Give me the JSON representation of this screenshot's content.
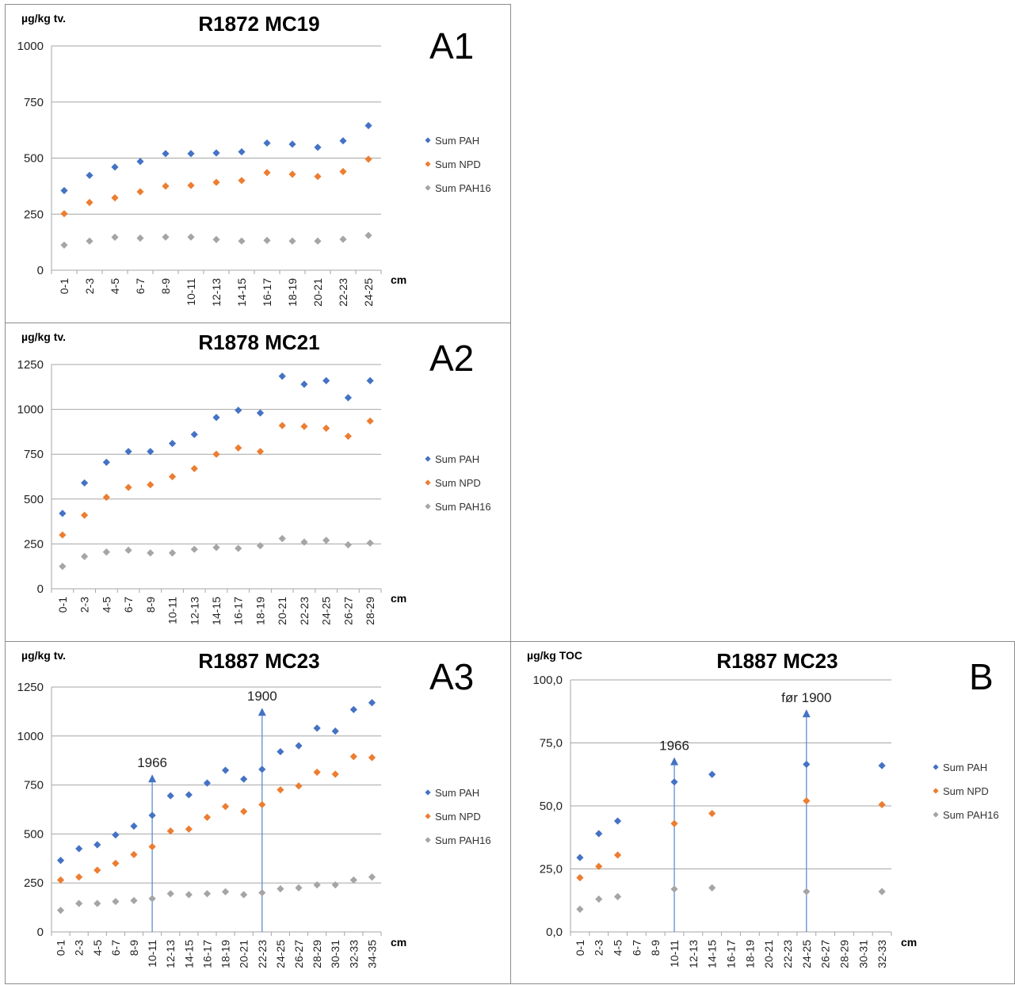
{
  "colors": {
    "Sum PAH": "#4472c4",
    "Sum NPD": "#ed7d31",
    "Sum PAH16": "#a5a5a5",
    "grid": "#a6a6a6",
    "arrow": "#5b8fd3"
  },
  "chart_data": [
    {
      "id": "a1",
      "type": "scatter",
      "title": "R1872 MC19",
      "panel_tag": "A1",
      "ylabel": "µg/kg tv.",
      "xlabel": "cm",
      "ylim": [
        0,
        1000
      ],
      "yticks": [
        "0",
        "250",
        "500",
        "750",
        "1000"
      ],
      "grid": true,
      "legend_position": "right",
      "categories": [
        "0-1",
        "2-3",
        "4-5",
        "6-7",
        "8-9",
        "10-11",
        "12-13",
        "14-15",
        "16-17",
        "18-19",
        "20-21",
        "22-23",
        "24-25"
      ],
      "series": [
        {
          "name": "Sum PAH",
          "values": [
            355,
            423,
            460,
            485,
            520,
            520,
            523,
            528,
            567,
            562,
            548,
            577,
            645
          ]
        },
        {
          "name": "Sum NPD",
          "values": [
            252,
            302,
            323,
            350,
            375,
            378,
            392,
            400,
            435,
            428,
            418,
            440,
            495
          ]
        },
        {
          "name": "Sum PAH16",
          "values": [
            112,
            130,
            147,
            143,
            148,
            148,
            137,
            130,
            133,
            130,
            130,
            138,
            155
          ]
        }
      ],
      "annotations": []
    },
    {
      "id": "a2",
      "type": "scatter",
      "title": "R1878 MC21",
      "panel_tag": "A2",
      "ylabel": "µg/kg tv.",
      "xlabel": "cm",
      "ylim": [
        0,
        1250
      ],
      "yticks": [
        "0",
        "250",
        "500",
        "750",
        "1000",
        "1250"
      ],
      "grid": true,
      "legend_position": "right",
      "categories": [
        "0-1",
        "2-3",
        "4-5",
        "6-7",
        "8-9",
        "10-11",
        "12-13",
        "14-15",
        "16-17",
        "18-19",
        "20-21",
        "22-23",
        "24-25",
        "26-27",
        "28-29"
      ],
      "series": [
        {
          "name": "Sum PAH",
          "values": [
            420,
            590,
            705,
            765,
            765,
            810,
            860,
            955,
            995,
            980,
            1185,
            1140,
            1160,
            1065,
            1160
          ]
        },
        {
          "name": "Sum NPD",
          "values": [
            300,
            410,
            510,
            565,
            580,
            625,
            670,
            750,
            785,
            765,
            910,
            905,
            895,
            850,
            935
          ]
        },
        {
          "name": "Sum PAH16",
          "values": [
            125,
            180,
            205,
            215,
            200,
            200,
            220,
            230,
            225,
            240,
            280,
            260,
            270,
            245,
            255
          ]
        }
      ],
      "annotations": []
    },
    {
      "id": "a3",
      "type": "scatter",
      "title": "R1887 MC23",
      "panel_tag": "A3",
      "ylabel": "µg/kg tv.",
      "xlabel": "cm",
      "ylim": [
        0,
        1250
      ],
      "yticks": [
        "0",
        "250",
        "500",
        "750",
        "1000",
        "1250"
      ],
      "grid": true,
      "legend_position": "right",
      "categories": [
        "0-1",
        "2-3",
        "4-5",
        "6-7",
        "8-9",
        "10-11",
        "12-13",
        "14-15",
        "16-17",
        "18-19",
        "20-21",
        "22-23",
        "24-25",
        "26-27",
        "28-29",
        "30-31",
        "32-33",
        "34-35"
      ],
      "series": [
        {
          "name": "Sum PAH",
          "values": [
            365,
            425,
            445,
            495,
            540,
            595,
            695,
            700,
            760,
            825,
            780,
            830,
            920,
            950,
            1040,
            1025,
            1135,
            1170
          ]
        },
        {
          "name": "Sum NPD",
          "values": [
            265,
            280,
            315,
            350,
            395,
            435,
            515,
            525,
            585,
            640,
            615,
            650,
            725,
            745,
            815,
            805,
            895,
            890
          ]
        },
        {
          "name": "Sum PAH16",
          "values": [
            110,
            145,
            145,
            155,
            160,
            170,
            195,
            190,
            195,
            205,
            190,
            200,
            220,
            225,
            240,
            240,
            265,
            280
          ]
        }
      ],
      "annotations": [
        {
          "label": "1966",
          "category": "10-11",
          "top": 800
        },
        {
          "label": "1900",
          "category": "22-23",
          "top": 1140
        }
      ]
    },
    {
      "id": "b",
      "type": "scatter",
      "title": "R1887 MC23",
      "panel_tag": "B",
      "ylabel": "µg/kg TOC",
      "xlabel": "cm",
      "ylim": [
        0,
        100
      ],
      "yticks": [
        "0,0",
        "25,0",
        "50,0",
        "75,0",
        "100,0"
      ],
      "grid": true,
      "legend_position": "right",
      "categories": [
        "0-1",
        "2-3",
        "4-5",
        "6-7",
        "8-9",
        "10-11",
        "12-13",
        "14-15",
        "16-17",
        "18-19",
        "20-21",
        "22-23",
        "24-25",
        "26-27",
        "28-29",
        "30-31",
        "32-33"
      ],
      "series": [
        {
          "name": "Sum PAH",
          "values": [
            29.5,
            39,
            44,
            null,
            null,
            59.5,
            null,
            62.5,
            null,
            null,
            null,
            null,
            66.5,
            null,
            null,
            null,
            66
          ]
        },
        {
          "name": "Sum NPD",
          "values": [
            21.5,
            26,
            30.5,
            null,
            null,
            43,
            null,
            47,
            null,
            null,
            null,
            null,
            52,
            null,
            null,
            null,
            50.5
          ]
        },
        {
          "name": "Sum PAH16",
          "values": [
            9,
            13,
            14,
            null,
            null,
            17,
            null,
            17.5,
            null,
            null,
            null,
            null,
            16,
            null,
            null,
            null,
            16
          ]
        }
      ],
      "annotations": [
        {
          "label": "1966",
          "category": "10-11",
          "top": 69
        },
        {
          "label": "før 1900",
          "category": "24-25",
          "top": 88
        }
      ]
    }
  ]
}
